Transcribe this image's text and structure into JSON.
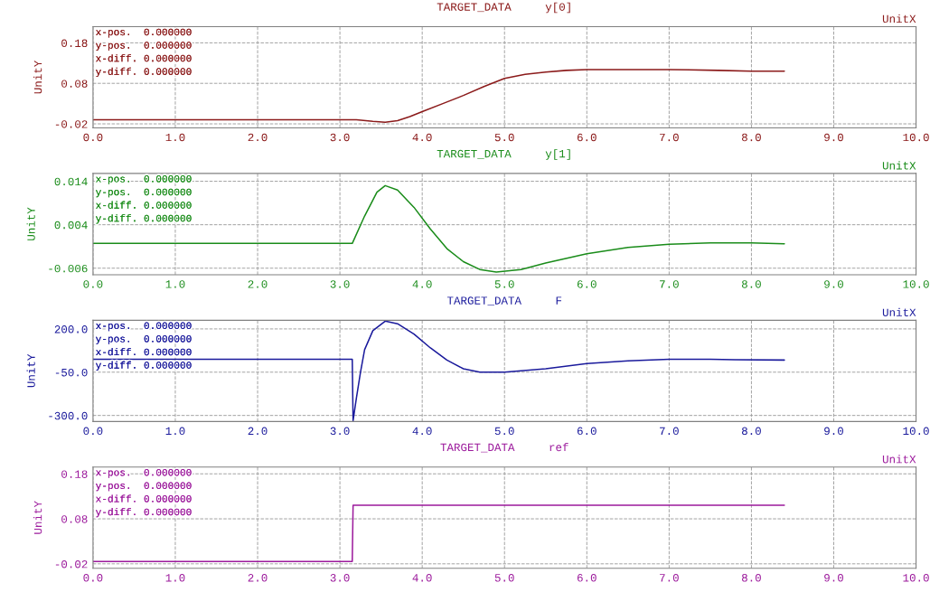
{
  "chart_data": [
    {
      "type": "line",
      "title": "TARGET_DATA     y[0]",
      "xlabel": "UnitX",
      "ylabel": "UnitY",
      "grid": true,
      "annotations": [
        "x-pos.  0.000000",
        "y-pos.  0.000000",
        "x-diff. 0.000000",
        "y-diff. 0.000000"
      ],
      "xlim": [
        0,
        10
      ],
      "xticks": [
        {
          "value": 0,
          "label": "0.0"
        },
        {
          "value": 1,
          "label": "1.0"
        },
        {
          "value": 2,
          "label": "2.0"
        },
        {
          "value": 3,
          "label": "3.0"
        },
        {
          "value": 4,
          "label": "4.0"
        },
        {
          "value": 5,
          "label": "5.0"
        },
        {
          "value": 6,
          "label": "6.0"
        },
        {
          "value": 7,
          "label": "7.0"
        },
        {
          "value": 8,
          "label": "8.0"
        },
        {
          "value": 9,
          "label": "9.0"
        },
        {
          "value": 10,
          "label": "10.0"
        }
      ],
      "ylim": [
        -0.03,
        0.22
      ],
      "yticks": [
        -0.02,
        0.08,
        0.18
      ],
      "x": [
        0,
        3.2,
        3.4,
        3.55,
        3.7,
        3.85,
        4.0,
        4.25,
        4.5,
        4.75,
        5.0,
        5.25,
        5.5,
        5.75,
        6.0,
        6.5,
        7.0,
        7.6,
        8.0,
        8.4
      ],
      "series": [
        {
          "color": "#8b1a1a",
          "values": [
            -0.01,
            -0.01,
            -0.014,
            -0.016,
            -0.012,
            -0.002,
            0.01,
            0.03,
            0.05,
            0.072,
            0.092,
            0.102,
            0.108,
            0.112,
            0.114,
            0.114,
            0.114,
            0.112,
            0.11,
            0.11
          ]
        }
      ]
    },
    {
      "type": "line",
      "title": "TARGET_DATA     y[1]",
      "xlabel": "UnitX",
      "ylabel": "UnitY",
      "grid": true,
      "annotations": [
        "x-pos.  0.000000",
        "y-pos.  0.000000",
        "x-diff. 0.000000",
        "y-diff. 0.000000"
      ],
      "xlim": [
        0,
        10
      ],
      "xticks": [
        {
          "value": 0,
          "label": "0.0"
        },
        {
          "value": 1,
          "label": "1.0"
        },
        {
          "value": 2,
          "label": "2.0"
        },
        {
          "value": 3,
          "label": "3.0"
        },
        {
          "value": 4,
          "label": "4.0"
        },
        {
          "value": 5,
          "label": "5.0"
        },
        {
          "value": 6,
          "label": "6.0"
        },
        {
          "value": 7,
          "label": "7.0"
        },
        {
          "value": 8,
          "label": "8.0"
        },
        {
          "value": 9,
          "label": "9.0"
        },
        {
          "value": 10,
          "label": "10.0"
        }
      ],
      "ylim": [
        -0.0075,
        0.0158
      ],
      "yticks": [
        -0.006,
        0.004,
        0.014
      ],
      "x": [
        0,
        3.15,
        3.3,
        3.45,
        3.55,
        3.7,
        3.9,
        4.1,
        4.3,
        4.5,
        4.7,
        4.9,
        5.2,
        5.5,
        6.0,
        6.5,
        7.0,
        7.5,
        8.0,
        8.4
      ],
      "series": [
        {
          "color": "#1a8c1a",
          "values": [
            -0.0003,
            -0.0003,
            0.006,
            0.0115,
            0.013,
            0.012,
            0.008,
            0.003,
            -0.0015,
            -0.0045,
            -0.0063,
            -0.0069,
            -0.0063,
            -0.0048,
            -0.0027,
            -0.0012,
            -0.0005,
            -0.0002,
            -0.0002,
            -0.0004
          ]
        }
      ]
    },
    {
      "type": "line",
      "title": "TARGET_DATA     F",
      "xlabel": "UnitX",
      "ylabel": "UnitY",
      "grid": true,
      "annotations": [
        "x-pos.  0.000000",
        "y-pos.  0.000000",
        "x-diff. 0.000000",
        "y-diff. 0.000000"
      ],
      "xlim": [
        0,
        10
      ],
      "xticks": [
        {
          "value": 0,
          "label": "0.0"
        },
        {
          "value": 1,
          "label": "1.0"
        },
        {
          "value": 2,
          "label": "2.0"
        },
        {
          "value": 3,
          "label": "3.0"
        },
        {
          "value": 4,
          "label": "4.0"
        },
        {
          "value": 5,
          "label": "5.0"
        },
        {
          "value": 6,
          "label": "6.0"
        },
        {
          "value": 7,
          "label": "7.0"
        },
        {
          "value": 8,
          "label": "8.0"
        },
        {
          "value": 9,
          "label": "9.0"
        },
        {
          "value": 10,
          "label": "10.0"
        }
      ],
      "ylim": [
        -335,
        250
      ],
      "yticks": [
        {
          "value": -300,
          "label": "-300.0"
        },
        {
          "value": -50,
          "label": "-50.0"
        },
        {
          "value": 200,
          "label": "200.0"
        }
      ],
      "x": [
        0,
        3.15,
        3.16,
        3.2,
        3.25,
        3.3,
        3.4,
        3.55,
        3.7,
        3.9,
        4.1,
        4.3,
        4.5,
        4.7,
        5.0,
        5.5,
        6.0,
        6.5,
        7.0,
        7.5,
        7.8,
        8.4
      ],
      "series": [
        {
          "color": "#1a1a9c",
          "values": [
            25,
            25,
            -330,
            -200,
            -50,
            80,
            190,
            245,
            230,
            170,
            90,
            20,
            -30,
            -50,
            -50,
            -30,
            0,
            15,
            25,
            25,
            22,
            20
          ]
        }
      ]
    },
    {
      "type": "line",
      "title": "TARGET_DATA     ref",
      "xlabel": "UnitX",
      "ylabel": "UnitY",
      "grid": true,
      "annotations": [
        "x-pos.  0.000000",
        "y-pos.  0.000000",
        "x-diff. 0.000000",
        "y-diff. 0.000000"
      ],
      "xlim": [
        0,
        10
      ],
      "xticks": [
        {
          "value": 0,
          "label": "0.0"
        },
        {
          "value": 1,
          "label": "1.0"
        },
        {
          "value": 2,
          "label": "2.0"
        },
        {
          "value": 3,
          "label": "3.0"
        },
        {
          "value": 4,
          "label": "4.0"
        },
        {
          "value": 5,
          "label": "5.0"
        },
        {
          "value": 6,
          "label": "6.0"
        },
        {
          "value": 7,
          "label": "7.0"
        },
        {
          "value": 8,
          "label": "8.0"
        },
        {
          "value": 9,
          "label": "9.0"
        },
        {
          "value": 10,
          "label": "10.0"
        }
      ],
      "ylim": [
        -0.03,
        0.195
      ],
      "yticks": [
        -0.02,
        0.08,
        0.18
      ],
      "x": [
        0,
        3.15,
        3.16,
        8.4
      ],
      "series": [
        {
          "color": "#9c1a9c",
          "values": [
            -0.015,
            -0.015,
            0.11,
            0.11
          ]
        }
      ]
    }
  ]
}
